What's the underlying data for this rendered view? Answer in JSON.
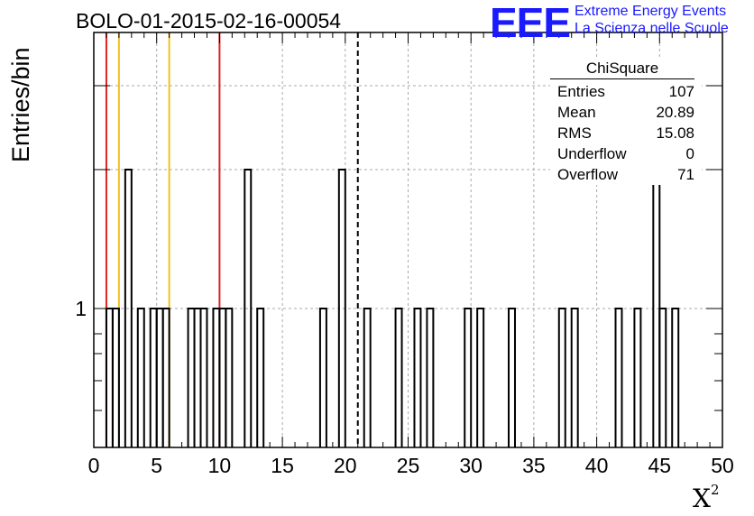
{
  "title": "BOLO-01-2015-02-16-00054",
  "logo": {
    "mark": "EEE",
    "line1": "Extreme Energy Events",
    "line2": "La Scienza nelle Scuole",
    "color": "#1a1aff"
  },
  "stats": {
    "title": "ChiSquare",
    "rows": [
      {
        "label": "Entries",
        "value": "107"
      },
      {
        "label": "Mean",
        "value": "20.89"
      },
      {
        "label": "RMS",
        "value": "15.08"
      },
      {
        "label": "Underflow",
        "value": "0"
      },
      {
        "label": "Overflow",
        "value": "71"
      }
    ]
  },
  "chart_data": {
    "type": "histogram",
    "title": "BOLO-01-2015-02-16-00054",
    "xlabel": "X",
    "xlabel_superscript": "2",
    "ylabel": "Entries/bin",
    "xlim": [
      0,
      50
    ],
    "ylim_log": true,
    "y_tick_label": "1",
    "x_ticks": [
      0,
      5,
      10,
      15,
      20,
      25,
      30,
      35,
      40,
      45,
      50
    ],
    "grid": true,
    "bin_width": 0.5,
    "bins": [
      {
        "x": 1.0,
        "count": 1
      },
      {
        "x": 1.5,
        "count": 1
      },
      {
        "x": 2.5,
        "count": 2
      },
      {
        "x": 3.5,
        "count": 1
      },
      {
        "x": 4.5,
        "count": 1
      },
      {
        "x": 5.0,
        "count": 1
      },
      {
        "x": 5.5,
        "count": 1
      },
      {
        "x": 7.5,
        "count": 1
      },
      {
        "x": 8.0,
        "count": 1
      },
      {
        "x": 8.5,
        "count": 1
      },
      {
        "x": 9.5,
        "count": 1
      },
      {
        "x": 10.0,
        "count": 1
      },
      {
        "x": 10.5,
        "count": 1
      },
      {
        "x": 12.0,
        "count": 2
      },
      {
        "x": 13.0,
        "count": 1
      },
      {
        "x": 18.0,
        "count": 1
      },
      {
        "x": 19.5,
        "count": 2
      },
      {
        "x": 21.5,
        "count": 1
      },
      {
        "x": 24.0,
        "count": 1
      },
      {
        "x": 25.5,
        "count": 1
      },
      {
        "x": 26.5,
        "count": 1
      },
      {
        "x": 29.5,
        "count": 1
      },
      {
        "x": 30.5,
        "count": 1
      },
      {
        "x": 33.0,
        "count": 1
      },
      {
        "x": 37.0,
        "count": 1
      },
      {
        "x": 38.0,
        "count": 1
      },
      {
        "x": 41.5,
        "count": 1
      },
      {
        "x": 43.0,
        "count": 1
      },
      {
        "x": 44.5,
        "count": 2
      },
      {
        "x": 45.0,
        "count": 1
      },
      {
        "x": 46.0,
        "count": 1
      }
    ],
    "vertical_lines": [
      {
        "x": 1.0,
        "color": "#dd2222",
        "style": "solid"
      },
      {
        "x": 2.0,
        "color": "#f0c020",
        "style": "solid"
      },
      {
        "x": 6.0,
        "color": "#f0c020",
        "style": "solid"
      },
      {
        "x": 10.0,
        "color": "#dd2222",
        "style": "solid"
      },
      {
        "x": 21.0,
        "color": "#000000",
        "style": "dashed"
      }
    ]
  }
}
